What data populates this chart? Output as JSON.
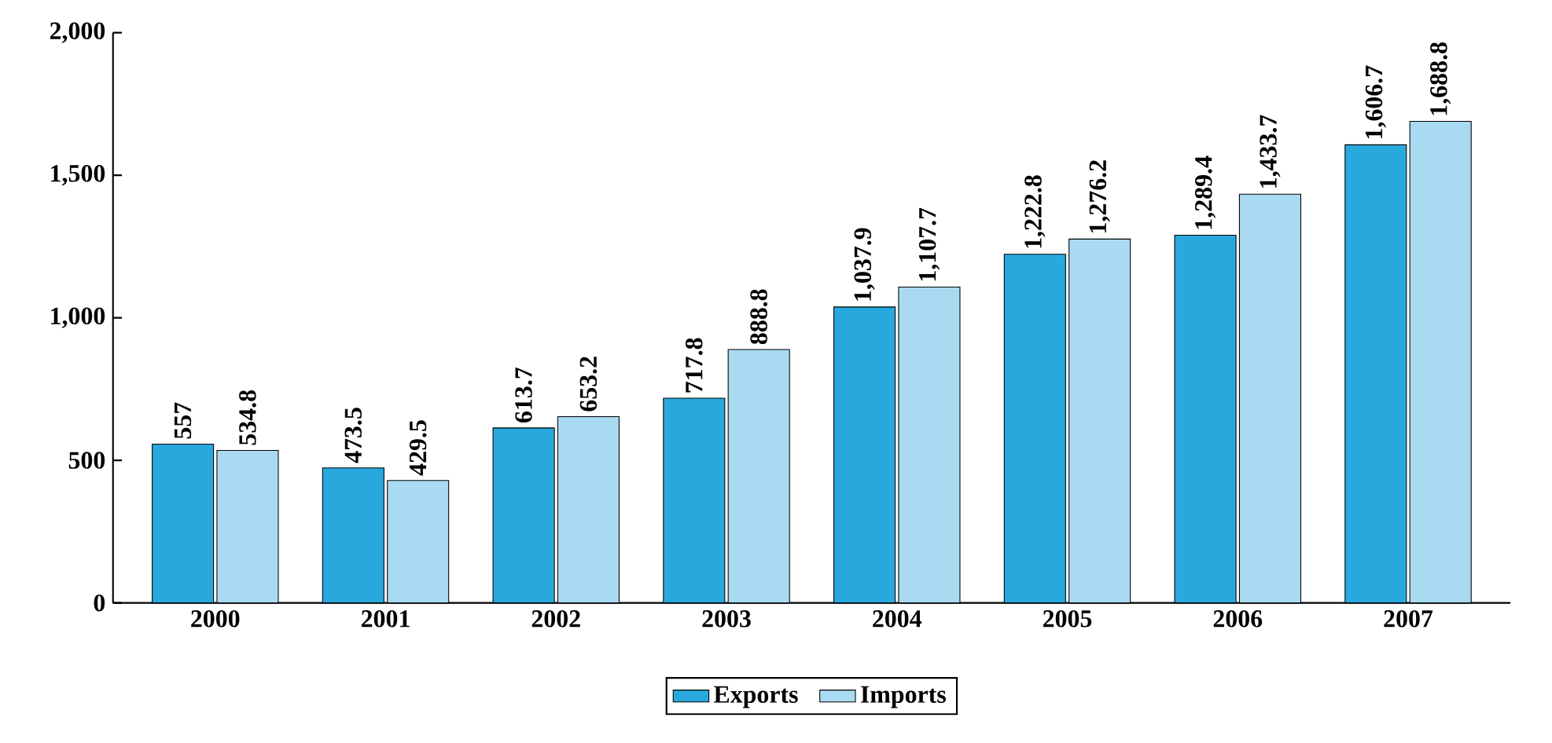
{
  "chart_data": {
    "type": "bar",
    "categories": [
      "2000",
      "2001",
      "2002",
      "2003",
      "2004",
      "2005",
      "2006",
      "2007"
    ],
    "series": [
      {
        "name": "Exports",
        "color": "#29a8de",
        "values": [
          557,
          473.5,
          613.7,
          717.8,
          1037.9,
          1222.8,
          1289.4,
          1606.7
        ],
        "value_labels": [
          "557",
          "473.5",
          "613.7",
          "717.8",
          "1,037.9",
          "1,222.8",
          "1,289.4",
          "1,606.7"
        ]
      },
      {
        "name": "Imports",
        "color": "#a9daf2",
        "values": [
          534.8,
          429.5,
          653.2,
          888.8,
          1107.7,
          1276.2,
          1433.7,
          1688.8
        ],
        "value_labels": [
          "534.8",
          "429.5",
          "653.2",
          "888.8",
          "1,107.7",
          "1,276.2",
          "1,433.7",
          "1,688.8"
        ]
      }
    ],
    "ylim": [
      0,
      2000
    ],
    "yticks": [
      0,
      {
        "value": 500,
        "label": "500"
      },
      {
        "value": 1000,
        "label": "1,000"
      },
      {
        "value": 1500,
        "label": "1,500"
      },
      {
        "value": 2000,
        "label": "2,000"
      }
    ],
    "legend": "bottom",
    "grid": false
  }
}
